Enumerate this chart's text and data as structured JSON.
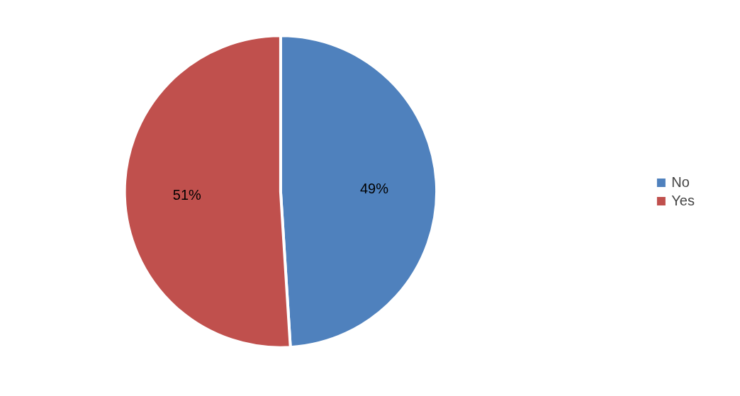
{
  "chart_data": {
    "type": "pie",
    "categories": [
      "No",
      "Yes"
    ],
    "values": [
      49,
      51
    ],
    "colors": [
      "#4f81bd",
      "#c0504d"
    ],
    "value_labels": [
      "49%",
      "51%"
    ],
    "legend": "right"
  }
}
